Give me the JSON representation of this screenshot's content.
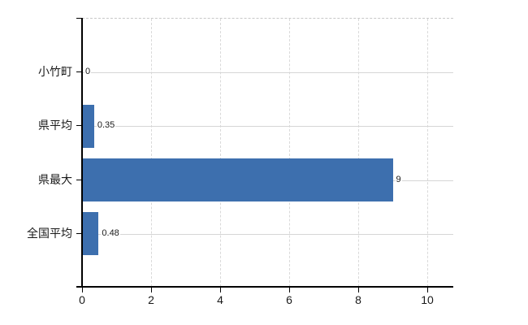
{
  "chart_data": {
    "type": "bar",
    "orientation": "horizontal",
    "categories": [
      "小竹町",
      "県平均",
      "県最大",
      "全国平均"
    ],
    "values": [
      0,
      0.35,
      9,
      0.48
    ],
    "value_labels": [
      "0",
      "0.35",
      "9",
      "0.48"
    ],
    "x_ticks": [
      0,
      2,
      4,
      6,
      8,
      10
    ],
    "x_tick_labels": [
      "0",
      "2",
      "4",
      "6",
      "8",
      "10"
    ],
    "xlim": [
      0,
      10.75
    ],
    "grid": "on",
    "legend": "none",
    "colors": {
      "bar": "#3d6fae",
      "axis": "#000000",
      "gridline_horizontal": "#d6d6d6",
      "gridline_vertical": "#d9d9d9",
      "plot_top_border": "#c8c8c8",
      "text": "#1a1a1a",
      "background": "#ffffff"
    }
  }
}
